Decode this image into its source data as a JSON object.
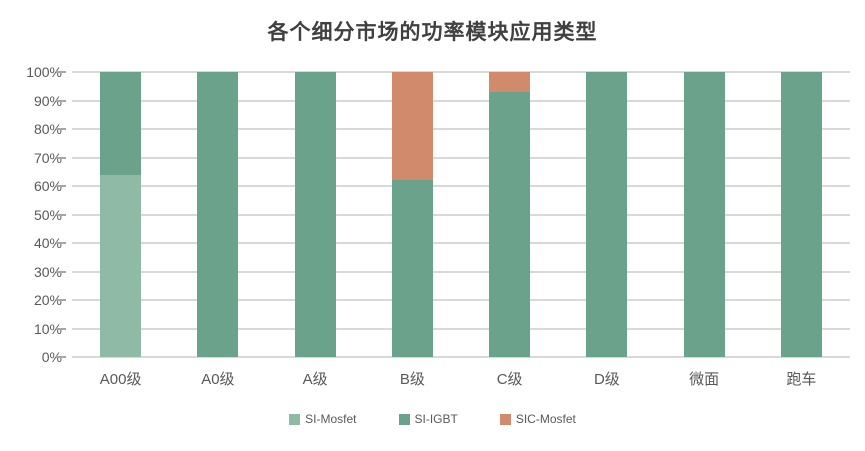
{
  "chart_data": {
    "type": "bar",
    "variant": "stacked-100-percent-column",
    "title": "各个细分市场的功率模块应用类型",
    "categories": [
      "A00级",
      "A0级",
      "A级",
      "B级",
      "C级",
      "D级",
      "微面",
      "跑车"
    ],
    "series": [
      {
        "name": "SI-Mosfet",
        "color": "#8fbaa5",
        "values": [
          64,
          0,
          0,
          0,
          0,
          0,
          0,
          0
        ]
      },
      {
        "name": "SI-IGBT",
        "color": "#6aa28c",
        "values": [
          36,
          100,
          100,
          62,
          93,
          100,
          100,
          100
        ]
      },
      {
        "name": "SIC-Mosfet",
        "color": "#d28a6c",
        "values": [
          0,
          0,
          0,
          38,
          7,
          0,
          0,
          0
        ]
      }
    ],
    "y_ticks": [
      "100%",
      "90%",
      "80%",
      "70%",
      "60%",
      "50%",
      "40%",
      "30%",
      "20%",
      "10%",
      "0%"
    ],
    "ylim": [
      0,
      100
    ],
    "grid": true,
    "legend_position": "bottom",
    "xlabel": "",
    "ylabel": ""
  },
  "palette": {
    "si_mosfet": "#8fbaa5",
    "si_igbt": "#6aa28c",
    "sic_mosfet": "#d28a6c",
    "gridline": "#d9d9d9",
    "tick_mark": "#a6a6a6",
    "axis_text": "#595959",
    "title_text": "#404040",
    "background": "#ffffff"
  }
}
